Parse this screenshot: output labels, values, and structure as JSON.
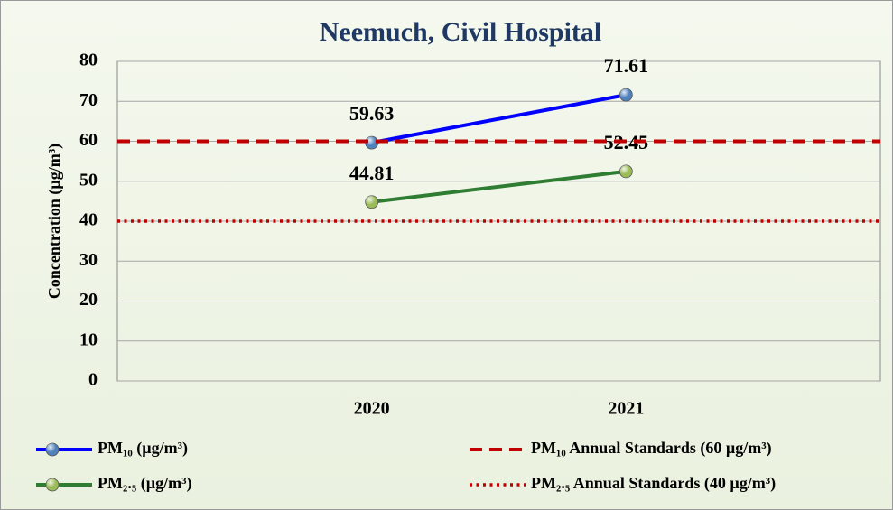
{
  "chart_data": {
    "type": "line",
    "title": "Neemuch, Civil Hospital",
    "y_label": "Concentration (µg/m³)",
    "categories": [
      null,
      "2020",
      "2021",
      null
    ],
    "series": [
      {
        "name": "PM₁₀ (µg/m³)",
        "color": "#0000ff",
        "marker_color": "#4f81bd",
        "line_style": "solid",
        "show_labels": true,
        "values": [
          null,
          59.63,
          71.61,
          null
        ]
      },
      {
        "name": "PM₂.₅ (µg/m³)",
        "color": "#2e7d32",
        "marker_color": "#9bbb59",
        "line_style": "solid",
        "show_labels": true,
        "values": [
          null,
          44.81,
          52.45,
          null
        ]
      },
      {
        "name": "PM₁₀ Annual Standards (60 µg/m³)",
        "color": "#c00000",
        "line_style": "dashed",
        "show_labels": false,
        "values": [
          60,
          60,
          60,
          60
        ]
      },
      {
        "name": "PM₂.₅ Annual Standards (40 µg/m³)",
        "color": "#c00000",
        "line_style": "dotted",
        "show_labels": false,
        "values": [
          40,
          40,
          40,
          40
        ]
      }
    ],
    "ylim": [
      0,
      80
    ],
    "yticks": [
      0,
      10,
      20,
      30,
      40,
      50,
      60,
      70,
      80
    ],
    "grid": true,
    "legend": "bottom"
  }
}
